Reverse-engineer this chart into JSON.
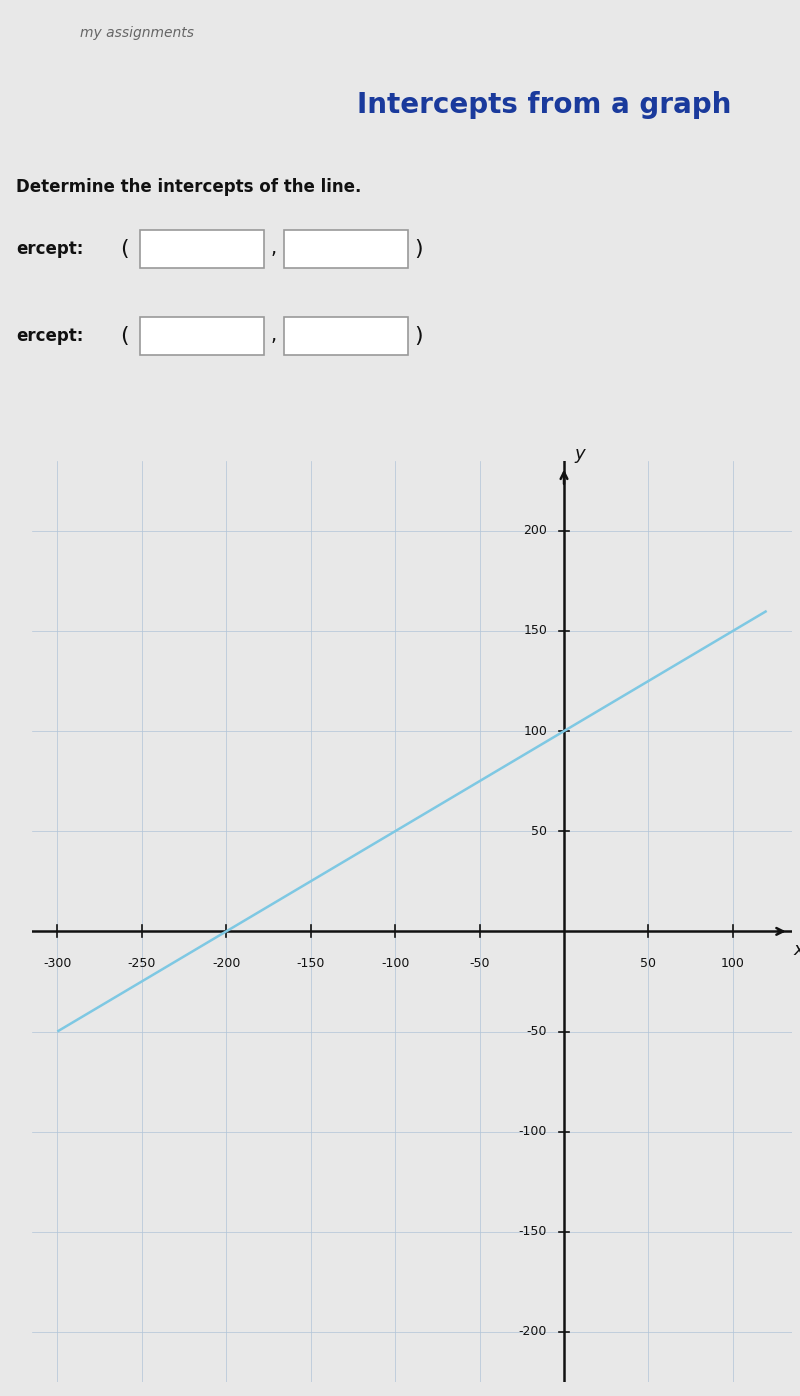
{
  "title": "Intercepts from a graph",
  "subtitle": "Determine the intercepts of the line.",
  "xlabel": "x",
  "ylabel": "y",
  "xlim": [
    -315,
    135
  ],
  "ylim": [
    -225,
    235
  ],
  "xticks": [
    -300,
    -250,
    -200,
    -150,
    -100,
    -50,
    50,
    100
  ],
  "yticks": [
    -200,
    -150,
    -100,
    -50,
    50,
    100,
    150,
    200
  ],
  "line_x": [
    -300,
    120
  ],
  "line_slope": 0.5,
  "line_yintercept": 100,
  "line_color": "#7ec8e3",
  "line_width": 1.8,
  "bg_color": "#e8e8e8",
  "graph_bg_color": "#dce4ef",
  "grid_color": "#b0c4d8",
  "axis_color": "#111111",
  "text_color_title": "#1a3a9c",
  "text_color_body": "#111111",
  "header_bg": "#cdd3e0",
  "top_bar_color": "#1a1a2e",
  "intercept_label1": "ercept:",
  "intercept_label2": "ercept:"
}
